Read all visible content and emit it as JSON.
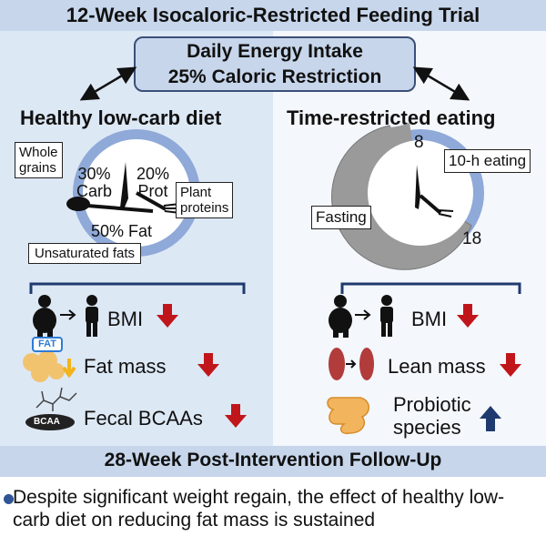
{
  "title": "12-Week Isocaloric-Restricted Feeding Trial",
  "intake": {
    "line1": "Daily Energy Intake",
    "line2": "25% Caloric Restriction"
  },
  "left": {
    "title": "Healthy low-carb diet",
    "labels": {
      "whole_grains": [
        "Whole",
        "grains"
      ],
      "plant_proteins": [
        "Plant",
        "proteins"
      ],
      "unsaturated_fats": "Unsaturated fats"
    },
    "macros": {
      "carb_pct": "30%",
      "carb": "Carb",
      "prot_pct": "20%",
      "prot": "Prot",
      "fat": "50% Fat"
    },
    "effects": [
      {
        "label": "BMI",
        "direction": "down"
      },
      {
        "label": "Fat mass",
        "direction": "down"
      },
      {
        "label": "Fecal BCAAs",
        "direction": "down"
      }
    ],
    "icon_texts": {
      "fat_badge": "FAT",
      "bcaa": "BCAA"
    }
  },
  "right": {
    "title": "Time-restricted eating",
    "clock": {
      "tick_8": "8",
      "tick_18": "18",
      "eating_label": "10-h eating",
      "fasting_label": "Fasting"
    },
    "effects": [
      {
        "label": "BMI",
        "direction": "down"
      },
      {
        "label": "Lean mass",
        "direction": "down"
      },
      {
        "label": [
          "Probiotic",
          "species"
        ],
        "direction": "up"
      }
    ]
  },
  "followup": {
    "title": "28-Week Post-Intervention Follow-Up",
    "finding": "Despite significant weight regain, the effect of healthy low-carb diet on reducing fat mass is sustained"
  },
  "colors": {
    "header_band": "#c7d6eb",
    "left_panel": "#dde8f5",
    "clock_ring": "#8fa9d8",
    "fasting_gray": "#9a9a9a",
    "down_arrow": "#c0161b",
    "up_arrow": "#1f3a6e",
    "bracket": "#1f3a6e"
  }
}
